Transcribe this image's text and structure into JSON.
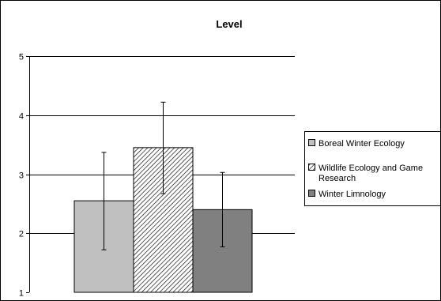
{
  "chart_data": {
    "type": "bar",
    "title": "Level",
    "xlabel": "",
    "ylabel": "",
    "ylim": [
      1,
      5
    ],
    "yticks": [
      1,
      2,
      3,
      4,
      5
    ],
    "grid": true,
    "legend_position": "right",
    "categories": [
      ""
    ],
    "series": [
      {
        "name": "Boreal Winter Ecology",
        "values": [
          2.55
        ],
        "error_low": [
          1.72
        ],
        "error_high": [
          3.37
        ],
        "fill": "#c0c0c0",
        "pattern": "solid"
      },
      {
        "name": "Wildlife Ecology and Game",
        "name_line2": "Research",
        "values": [
          3.45
        ],
        "error_low": [
          2.67
        ],
        "error_high": [
          4.22
        ],
        "fill": "#ffffff",
        "pattern": "diagonal-hatch"
      },
      {
        "name": "Winter Limnology",
        "values": [
          2.4
        ],
        "error_low": [
          1.77
        ],
        "error_high": [
          3.03
        ],
        "fill": "#808080",
        "pattern": "solid"
      }
    ]
  }
}
